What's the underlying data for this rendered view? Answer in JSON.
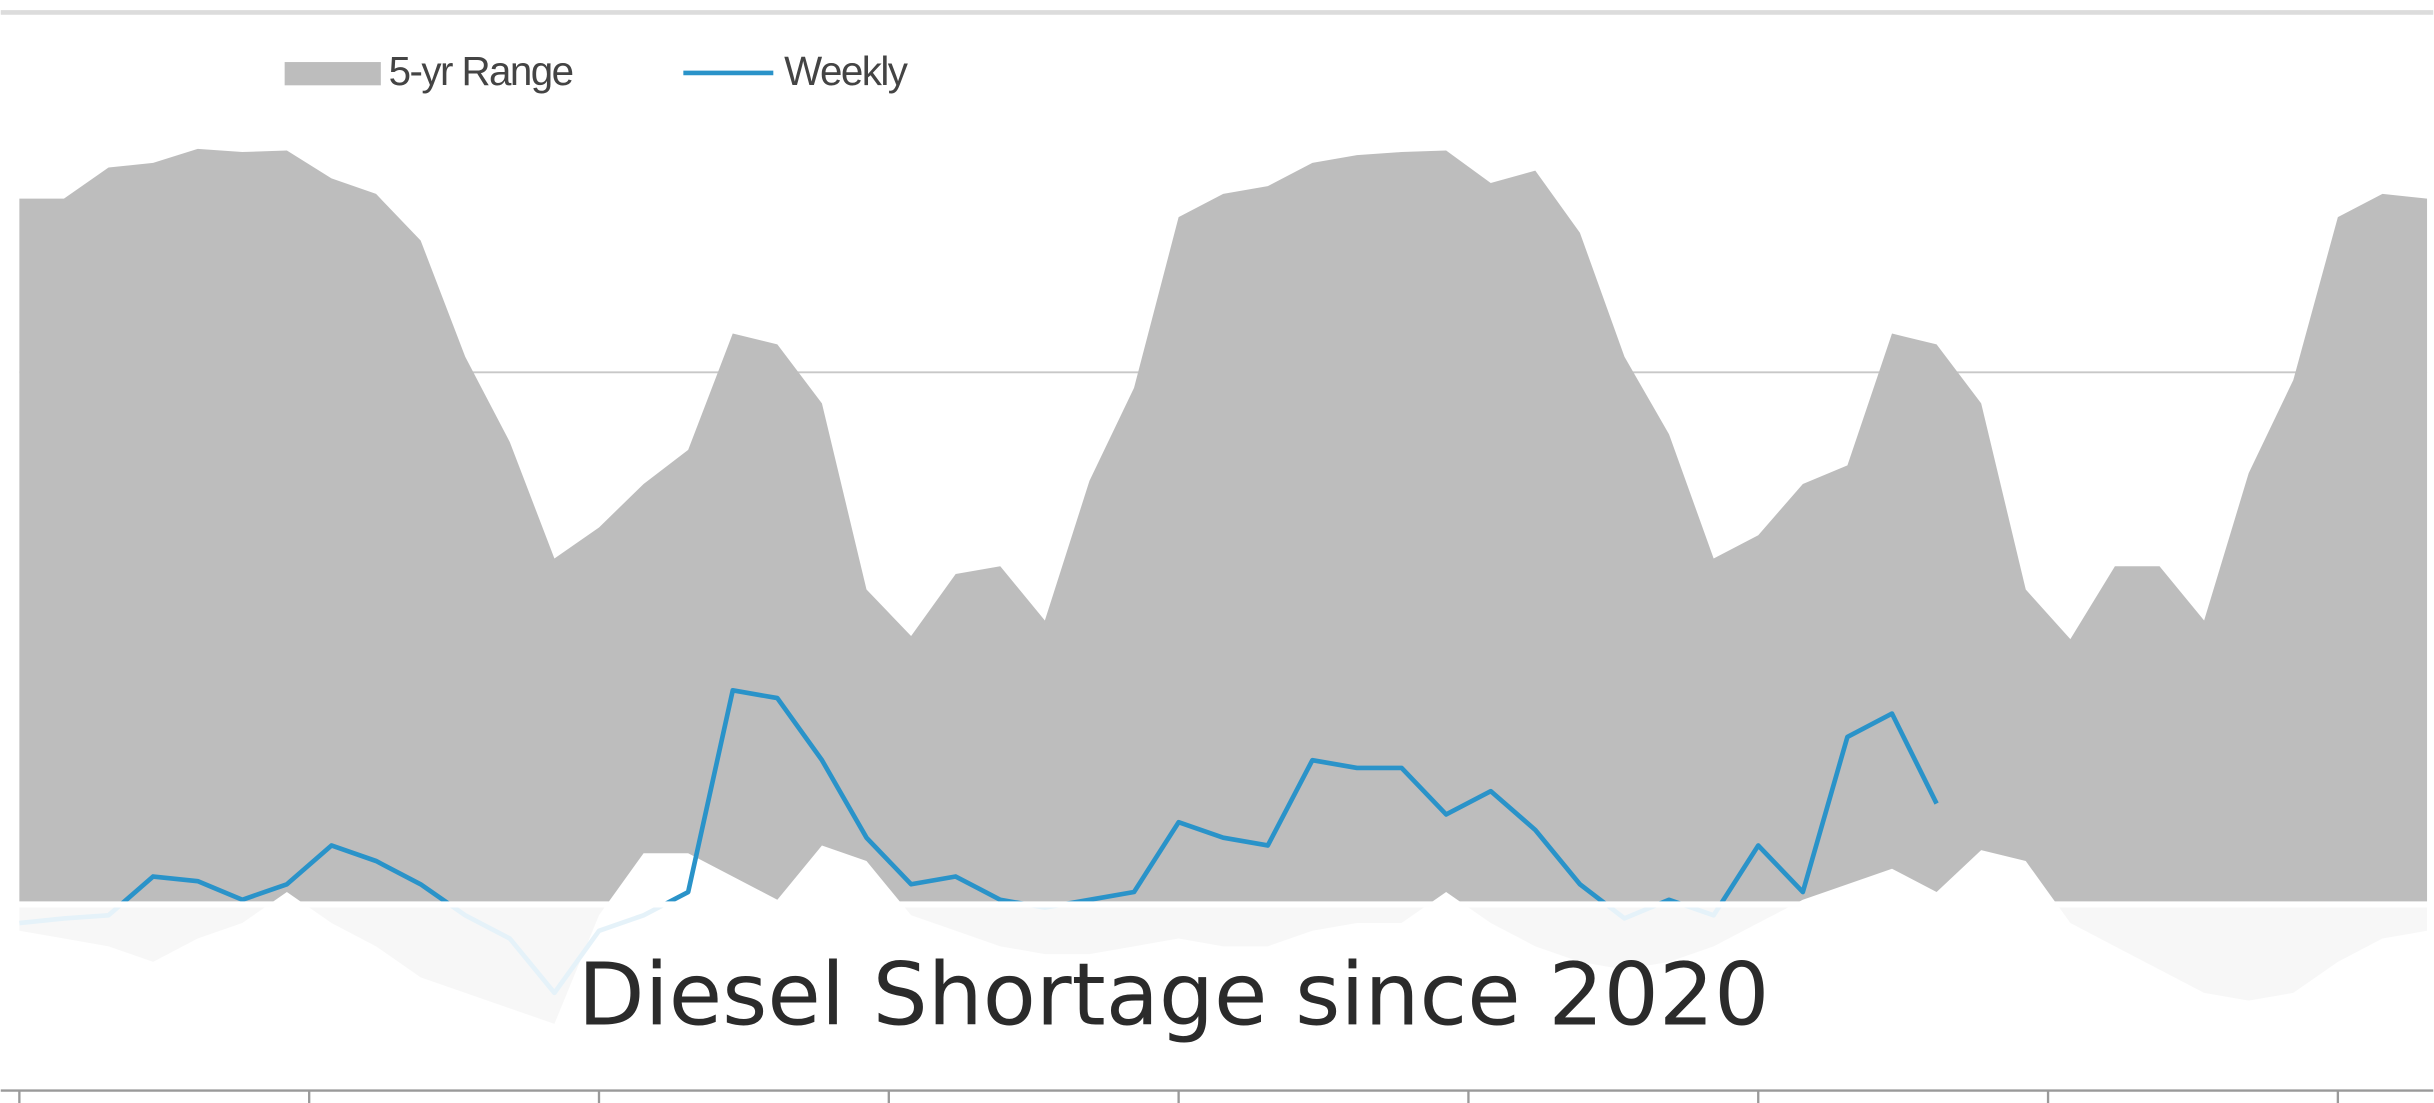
{
  "chart_data": {
    "type": "line",
    "caption": "Diesel Shortage since 2020",
    "x": [
      0,
      2,
      4,
      6,
      8,
      10,
      12,
      14,
      16,
      18,
      20,
      22,
      24,
      26,
      28,
      30,
      32,
      34,
      36,
      38,
      40,
      42,
      44,
      46,
      48,
      50,
      52,
      54,
      56,
      58,
      60,
      62,
      64,
      66,
      68,
      70,
      72,
      74,
      76,
      78,
      80,
      82,
      84,
      86,
      88,
      90,
      92,
      94,
      96,
      98,
      100,
      102,
      104,
      106,
      108
    ],
    "xlim": [
      0,
      108
    ],
    "xticks": [
      0,
      13,
      26,
      39,
      52,
      65,
      78,
      91,
      104
    ],
    "ylim": [
      0,
      690
    ],
    "yticks": [
      460
    ],
    "grid": true,
    "legend": "top-left",
    "series": [
      {
        "name": "5-yr Range",
        "color": "#bdbdbd",
        "upper": [
          572,
          572,
          592,
          595,
          604,
          602,
          603,
          585,
          575,
          545,
          470,
          415,
          340,
          360,
          388,
          410,
          485,
          478,
          440,
          320,
          290,
          330,
          335,
          300,
          390,
          450,
          560,
          575,
          580,
          595,
          600,
          602,
          603,
          582,
          590,
          550,
          470,
          420,
          340,
          355,
          388,
          400,
          485,
          478,
          440,
          320,
          288,
          335,
          335,
          300,
          395,
          455,
          560,
          575,
          572
        ],
        "lower": [
          100,
          95,
          90,
          80,
          95,
          105,
          125,
          105,
          90,
          70,
          60,
          50,
          40,
          110,
          150,
          150,
          135,
          120,
          155,
          145,
          110,
          100,
          90,
          85,
          85,
          90,
          95,
          90,
          90,
          100,
          105,
          105,
          125,
          105,
          90,
          80,
          75,
          80,
          90,
          105,
          120,
          130,
          140,
          125,
          152,
          145,
          105,
          90,
          75,
          60,
          55,
          60,
          80,
          95,
          100
        ]
      },
      {
        "name": "Weekly",
        "color": "#2a93c9",
        "values": [
          105,
          108,
          110,
          135,
          132,
          120,
          130,
          155,
          145,
          130,
          110,
          95,
          60,
          100,
          110,
          125,
          255,
          250,
          210,
          160,
          130,
          135,
          120,
          115,
          120,
          125,
          170,
          160,
          155,
          210,
          205,
          205,
          175,
          190,
          165,
          130,
          108,
          120,
          110,
          155,
          125,
          225,
          240,
          182,
          null,
          null,
          null,
          null,
          null,
          null,
          null,
          null,
          null,
          null,
          null
        ]
      }
    ]
  }
}
